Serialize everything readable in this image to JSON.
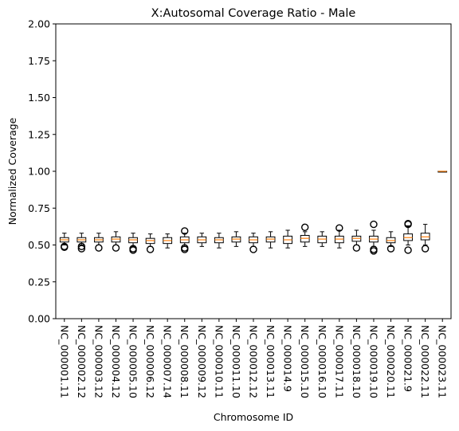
{
  "chart_data": {
    "type": "box",
    "title": "X:Autosomal Coverage Ratio - Male",
    "xlabel": "Chromosome ID",
    "ylabel": "Normalized Coverage",
    "ylim": [
      0,
      2
    ],
    "yticks": [
      "0.00",
      "0.25",
      "0.50",
      "0.75",
      "1.00",
      "1.25",
      "1.50",
      "1.75",
      "2.00"
    ],
    "grid": false,
    "colors": {
      "box": "#000000",
      "median": "#ff7f0e",
      "background": "#ffffff"
    },
    "categories": [
      "NC_000001.11",
      "NC_000002.12",
      "NC_000003.12",
      "NC_000004.12",
      "NC_000005.10",
      "NC_000006.12",
      "NC_000007.14",
      "NC_000008.11",
      "NC_000009.12",
      "NC_000010.11",
      "NC_000011.10",
      "NC_000012.12",
      "NC_000013.11",
      "NC_000014.9",
      "NC_000015.10",
      "NC_000016.10",
      "NC_000017.11",
      "NC_000018.10",
      "NC_000019.10",
      "NC_000020.11",
      "NC_000021.9",
      "NC_000022.11",
      "NC_000023.11"
    ],
    "boxes": [
      {
        "whislo": 0.5,
        "q1": 0.52,
        "med": 0.535,
        "q3": 0.55,
        "whishi": 0.58,
        "fliers": [
          0.49,
          0.485
        ]
      },
      {
        "whislo": 0.5,
        "q1": 0.52,
        "med": 0.535,
        "q3": 0.55,
        "whishi": 0.58,
        "fliers": [
          0.49,
          0.475
        ]
      },
      {
        "whislo": 0.5,
        "q1": 0.52,
        "med": 0.535,
        "q3": 0.55,
        "whishi": 0.58,
        "fliers": [
          0.48
        ]
      },
      {
        "whislo": 0.5,
        "q1": 0.52,
        "med": 0.54,
        "q3": 0.555,
        "whishi": 0.59,
        "fliers": [
          0.48
        ]
      },
      {
        "whislo": 0.49,
        "q1": 0.515,
        "med": 0.535,
        "q3": 0.55,
        "whishi": 0.58,
        "fliers": [
          0.475,
          0.465
        ]
      },
      {
        "whislo": 0.49,
        "q1": 0.51,
        "med": 0.53,
        "q3": 0.545,
        "whishi": 0.575,
        "fliers": [
          0.47
        ]
      },
      {
        "whislo": 0.48,
        "q1": 0.51,
        "med": 0.53,
        "q3": 0.55,
        "whishi": 0.575,
        "fliers": []
      },
      {
        "whislo": 0.49,
        "q1": 0.515,
        "med": 0.535,
        "q3": 0.555,
        "whishi": 0.58,
        "fliers": [
          0.595,
          0.48,
          0.47
        ]
      },
      {
        "whislo": 0.49,
        "q1": 0.515,
        "med": 0.535,
        "q3": 0.555,
        "whishi": 0.58,
        "fliers": []
      },
      {
        "whislo": 0.48,
        "q1": 0.515,
        "med": 0.535,
        "q3": 0.55,
        "whishi": 0.58,
        "fliers": []
      },
      {
        "whislo": 0.49,
        "q1": 0.52,
        "med": 0.54,
        "q3": 0.555,
        "whishi": 0.59,
        "fliers": []
      },
      {
        "whislo": 0.49,
        "q1": 0.515,
        "med": 0.535,
        "q3": 0.555,
        "whishi": 0.58,
        "fliers": [
          0.47
        ]
      },
      {
        "whislo": 0.48,
        "q1": 0.52,
        "med": 0.54,
        "q3": 0.555,
        "whishi": 0.59,
        "fliers": []
      },
      {
        "whislo": 0.48,
        "q1": 0.51,
        "med": 0.535,
        "q3": 0.56,
        "whishi": 0.6,
        "fliers": []
      },
      {
        "whislo": 0.49,
        "q1": 0.52,
        "med": 0.545,
        "q3": 0.565,
        "whishi": 0.59,
        "fliers": [
          0.62
        ]
      },
      {
        "whislo": 0.49,
        "q1": 0.515,
        "med": 0.54,
        "q3": 0.56,
        "whishi": 0.59,
        "fliers": []
      },
      {
        "whislo": 0.48,
        "q1": 0.515,
        "med": 0.54,
        "q3": 0.56,
        "whishi": 0.6,
        "fliers": [
          0.615
        ]
      },
      {
        "whislo": 0.5,
        "q1": 0.525,
        "med": 0.545,
        "q3": 0.56,
        "whishi": 0.6,
        "fliers": [
          0.48
        ]
      },
      {
        "whislo": 0.49,
        "q1": 0.52,
        "med": 0.54,
        "q3": 0.56,
        "whishi": 0.6,
        "fliers": [
          0.64,
          0.47,
          0.46
        ]
      },
      {
        "whislo": 0.49,
        "q1": 0.515,
        "med": 0.53,
        "q3": 0.55,
        "whishi": 0.59,
        "fliers": [
          0.475
        ]
      },
      {
        "whislo": 0.5,
        "q1": 0.53,
        "med": 0.55,
        "q3": 0.575,
        "whishi": 0.63,
        "fliers": [
          0.645,
          0.64,
          0.465
        ]
      },
      {
        "whislo": 0.5,
        "q1": 0.535,
        "med": 0.555,
        "q3": 0.58,
        "whishi": 0.64,
        "fliers": [
          0.475
        ]
      },
      {
        "whislo": 1.0,
        "q1": 1.0,
        "med": 1.0,
        "q3": 1.0,
        "whishi": 1.0,
        "fliers": []
      }
    ]
  }
}
